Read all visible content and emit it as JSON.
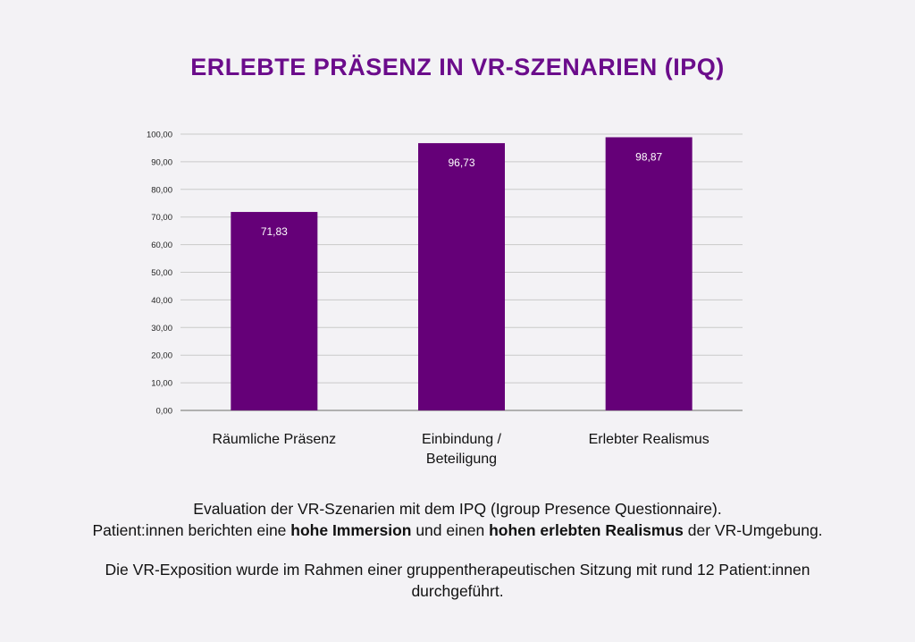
{
  "title": "ERLEBTE PRÄSENZ IN VR-SZENARIEN (IPQ)",
  "colors": {
    "title": "#6b0c8b",
    "bar": "#650078",
    "bar_label": "#ffffff",
    "gridline": "#c9c9c9",
    "axis": "#888888",
    "background": "#f3f2f5"
  },
  "chart_data": {
    "type": "bar",
    "title": "ERLEBTE PRÄSENZ IN VR-SZENARIEN (IPQ)",
    "categories": [
      "Räumliche Präsenz",
      "Einbindung / Beteiligung",
      "Erlebter Realismus"
    ],
    "category_lines": [
      [
        "Räumliche Präsenz"
      ],
      [
        "Einbindung /",
        "Beteiligung"
      ],
      [
        "Erlebter Realismus"
      ]
    ],
    "values": [
      71.83,
      96.73,
      98.87
    ],
    "data_labels": [
      "71,83",
      "96,73",
      "98,87"
    ],
    "ylim": [
      0,
      100
    ],
    "yticks": [
      "0,00",
      "10,00",
      "20,00",
      "30,00",
      "40,00",
      "50,00",
      "60,00",
      "70,00",
      "80,00",
      "90,00",
      "100,00"
    ],
    "grid": true,
    "legend": "none",
    "xlabel": "",
    "ylabel": ""
  },
  "caption": {
    "line1": "Evaluation der VR-Szenarien mit dem IPQ (Igroup Presence Questionnaire).",
    "line2_a": "Patient:innen berichten eine ",
    "line2_b": "hohe Immersion",
    "line2_c": " und einen ",
    "line2_d": "hohen erlebten Realismus",
    "line2_e": " der VR-Umgebung.",
    "line3": "Die VR-Exposition wurde im Rahmen einer gruppentherapeutischen Sitzung mit rund 12 Patient:innen",
    "line4": "durchgeführt."
  }
}
